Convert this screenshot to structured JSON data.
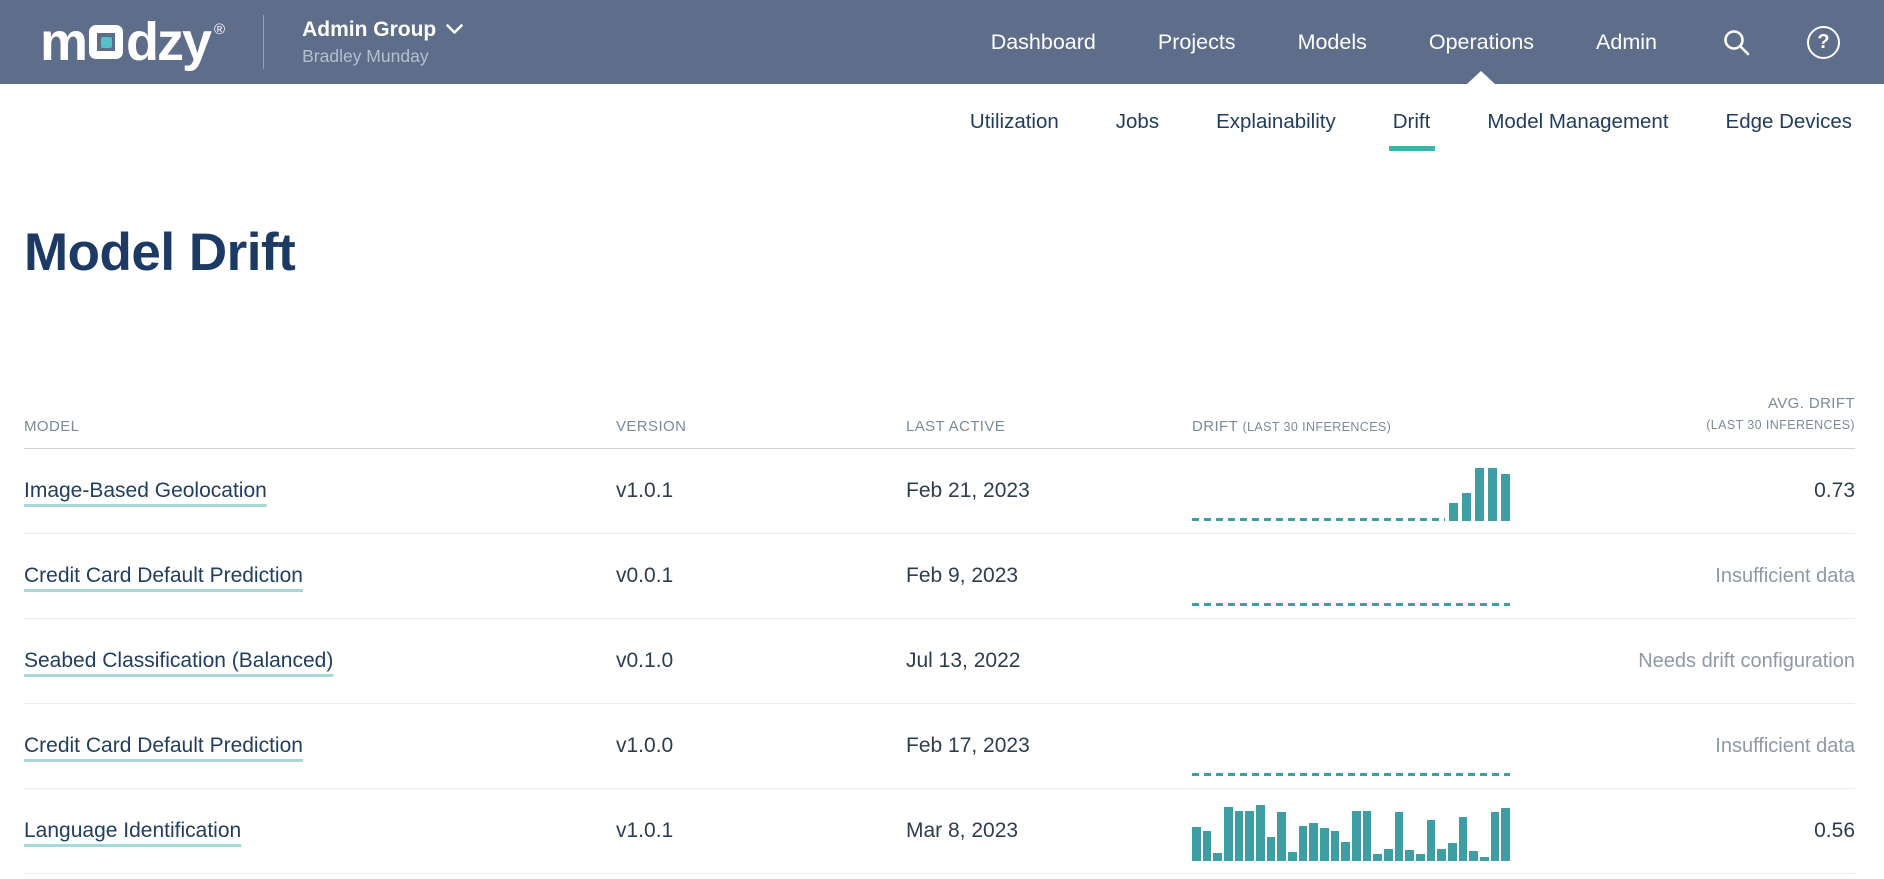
{
  "header": {
    "logo_pre": "m",
    "logo_post": "dzy",
    "logo_reg": "®",
    "account": {
      "group": "Admin Group",
      "user": "Bradley Munday"
    },
    "nav": [
      {
        "label": "Dashboard",
        "active": false
      },
      {
        "label": "Projects",
        "active": false
      },
      {
        "label": "Models",
        "active": false
      },
      {
        "label": "Operations",
        "active": true
      },
      {
        "label": "Admin",
        "active": false
      }
    ],
    "icons": {
      "search": "magnifier",
      "help_glyph": "?"
    }
  },
  "subnav": {
    "tabs": [
      {
        "label": "Utilization",
        "active": false
      },
      {
        "label": "Jobs",
        "active": false
      },
      {
        "label": "Explainability",
        "active": false
      },
      {
        "label": "Drift",
        "active": true
      },
      {
        "label": "Model Management",
        "active": false
      },
      {
        "label": "Edge Devices",
        "active": false
      }
    ]
  },
  "page": {
    "title": "Model Drift"
  },
  "colors": {
    "topbar_bg": "#5e6d89",
    "accent_teal": "#3f9ea3",
    "tab_underline": "#43b2ab",
    "logo_center_teal": "#52c2c6",
    "title_navy": "#1c3a63",
    "link_underline": "#a7d8d5",
    "muted_gray": "#8e99a5"
  },
  "table": {
    "columns": {
      "model": "MODEL",
      "version": "VERSION",
      "last_active": "LAST ACTIVE",
      "drift": "DRIFT",
      "drift_sub": "(LAST 30 INFERENCES)",
      "avg_line1": "AVG. DRIFT",
      "avg_line2": "(LAST 30 INFERENCES)"
    },
    "rows": [
      {
        "model": "Image-Based Geolocation",
        "version": "v1.0.1",
        "last_active": "Feb 21, 2023",
        "avg": "0.73",
        "avg_type": "value",
        "chart": {
          "type": "bar",
          "baseline": "partial",
          "bars": [
            0.32,
            0.5,
            0.95,
            0.95,
            0.84
          ]
        }
      },
      {
        "model": "Credit Card Default Prediction",
        "version": "v0.0.1",
        "last_active": "Feb 9, 2023",
        "avg": "Insufficient data",
        "avg_type": "status",
        "chart": {
          "type": "bar",
          "baseline": "full",
          "bars": []
        }
      },
      {
        "model": "Seabed Classification (Balanced)",
        "version": "v0.1.0",
        "last_active": "Jul 13, 2022",
        "avg": "Needs drift configuration",
        "avg_type": "status",
        "chart": {
          "type": "none",
          "baseline": "none",
          "bars": []
        }
      },
      {
        "model": "Credit Card Default Prediction",
        "version": "v1.0.0",
        "last_active": "Feb 17, 2023",
        "avg": "Insufficient data",
        "avg_type": "status",
        "chart": {
          "type": "bar",
          "baseline": "full",
          "bars": []
        }
      },
      {
        "model": "Language Identification",
        "version": "v1.0.1",
        "last_active": "Mar 8, 2023",
        "avg": "0.56",
        "avg_type": "value",
        "chart": {
          "type": "bar",
          "baseline": "none",
          "bars": [
            0.61,
            0.53,
            0.15,
            0.97,
            0.89,
            0.89,
            1.0,
            0.42,
            0.87,
            0.16,
            0.63,
            0.67,
            0.59,
            0.53,
            0.34,
            0.89,
            0.89,
            0.13,
            0.21,
            0.87,
            0.2,
            0.12,
            0.74,
            0.22,
            0.33,
            0.79,
            0.17,
            0.08,
            0.87,
            0.94
          ]
        }
      }
    ]
  }
}
